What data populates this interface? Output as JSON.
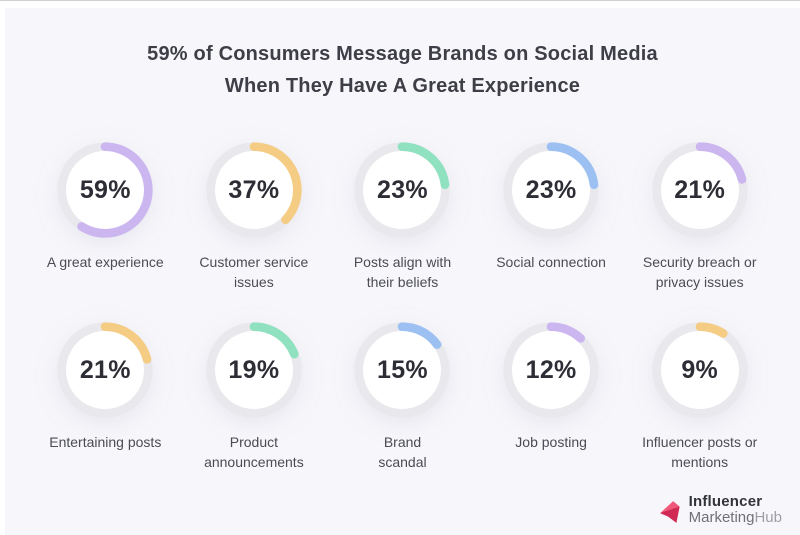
{
  "title": {
    "line1": "59% of Consumers Message Brands on Social Media",
    "line2": "When They Have A Great Experience"
  },
  "colors": {
    "background": "#f7f7fb",
    "track": "#e9e9ed",
    "purple": "#cbb6ef",
    "yellow": "#f5cc83",
    "green": "#8fe1c0",
    "blue": "#9cc0f2",
    "percent_text": "#2d2d35",
    "label_text": "#4b4b54",
    "logo_pink_light": "#ef5878",
    "logo_pink_dark": "#d02a54"
  },
  "chart_data": {
    "type": "pie",
    "variant": "donut-grid",
    "title": "59% of Consumers Message Brands on Social Media When They Have A Great Experience",
    "legend_position": "none",
    "value_range": [
      0,
      100
    ],
    "items": [
      {
        "label": "A great experience",
        "value": 59,
        "color": "#cbb6ef"
      },
      {
        "label": "Customer service\nissues",
        "value": 37,
        "color": "#f5cc83"
      },
      {
        "label": "Posts align with\ntheir beliefs",
        "value": 23,
        "color": "#8fe1c0"
      },
      {
        "label": "Social connection",
        "value": 23,
        "color": "#9cc0f2"
      },
      {
        "label": "Security breach or\nprivacy issues",
        "value": 21,
        "color": "#cbb6ef"
      },
      {
        "label": "Entertaining posts",
        "value": 21,
        "color": "#f5cc83"
      },
      {
        "label": "Product\nannouncements",
        "value": 19,
        "color": "#8fe1c0"
      },
      {
        "label": "Brand\nscandal",
        "value": 15,
        "color": "#9cc0f2"
      },
      {
        "label": "Job posting",
        "value": 12,
        "color": "#cbb6ef"
      },
      {
        "label": "Influencer posts or\nmentions",
        "value": 9,
        "color": "#f5cc83"
      }
    ]
  },
  "logo": {
    "line1": "Influencer",
    "line2_marketing": "Marketing",
    "line2_hub": "Hub"
  }
}
